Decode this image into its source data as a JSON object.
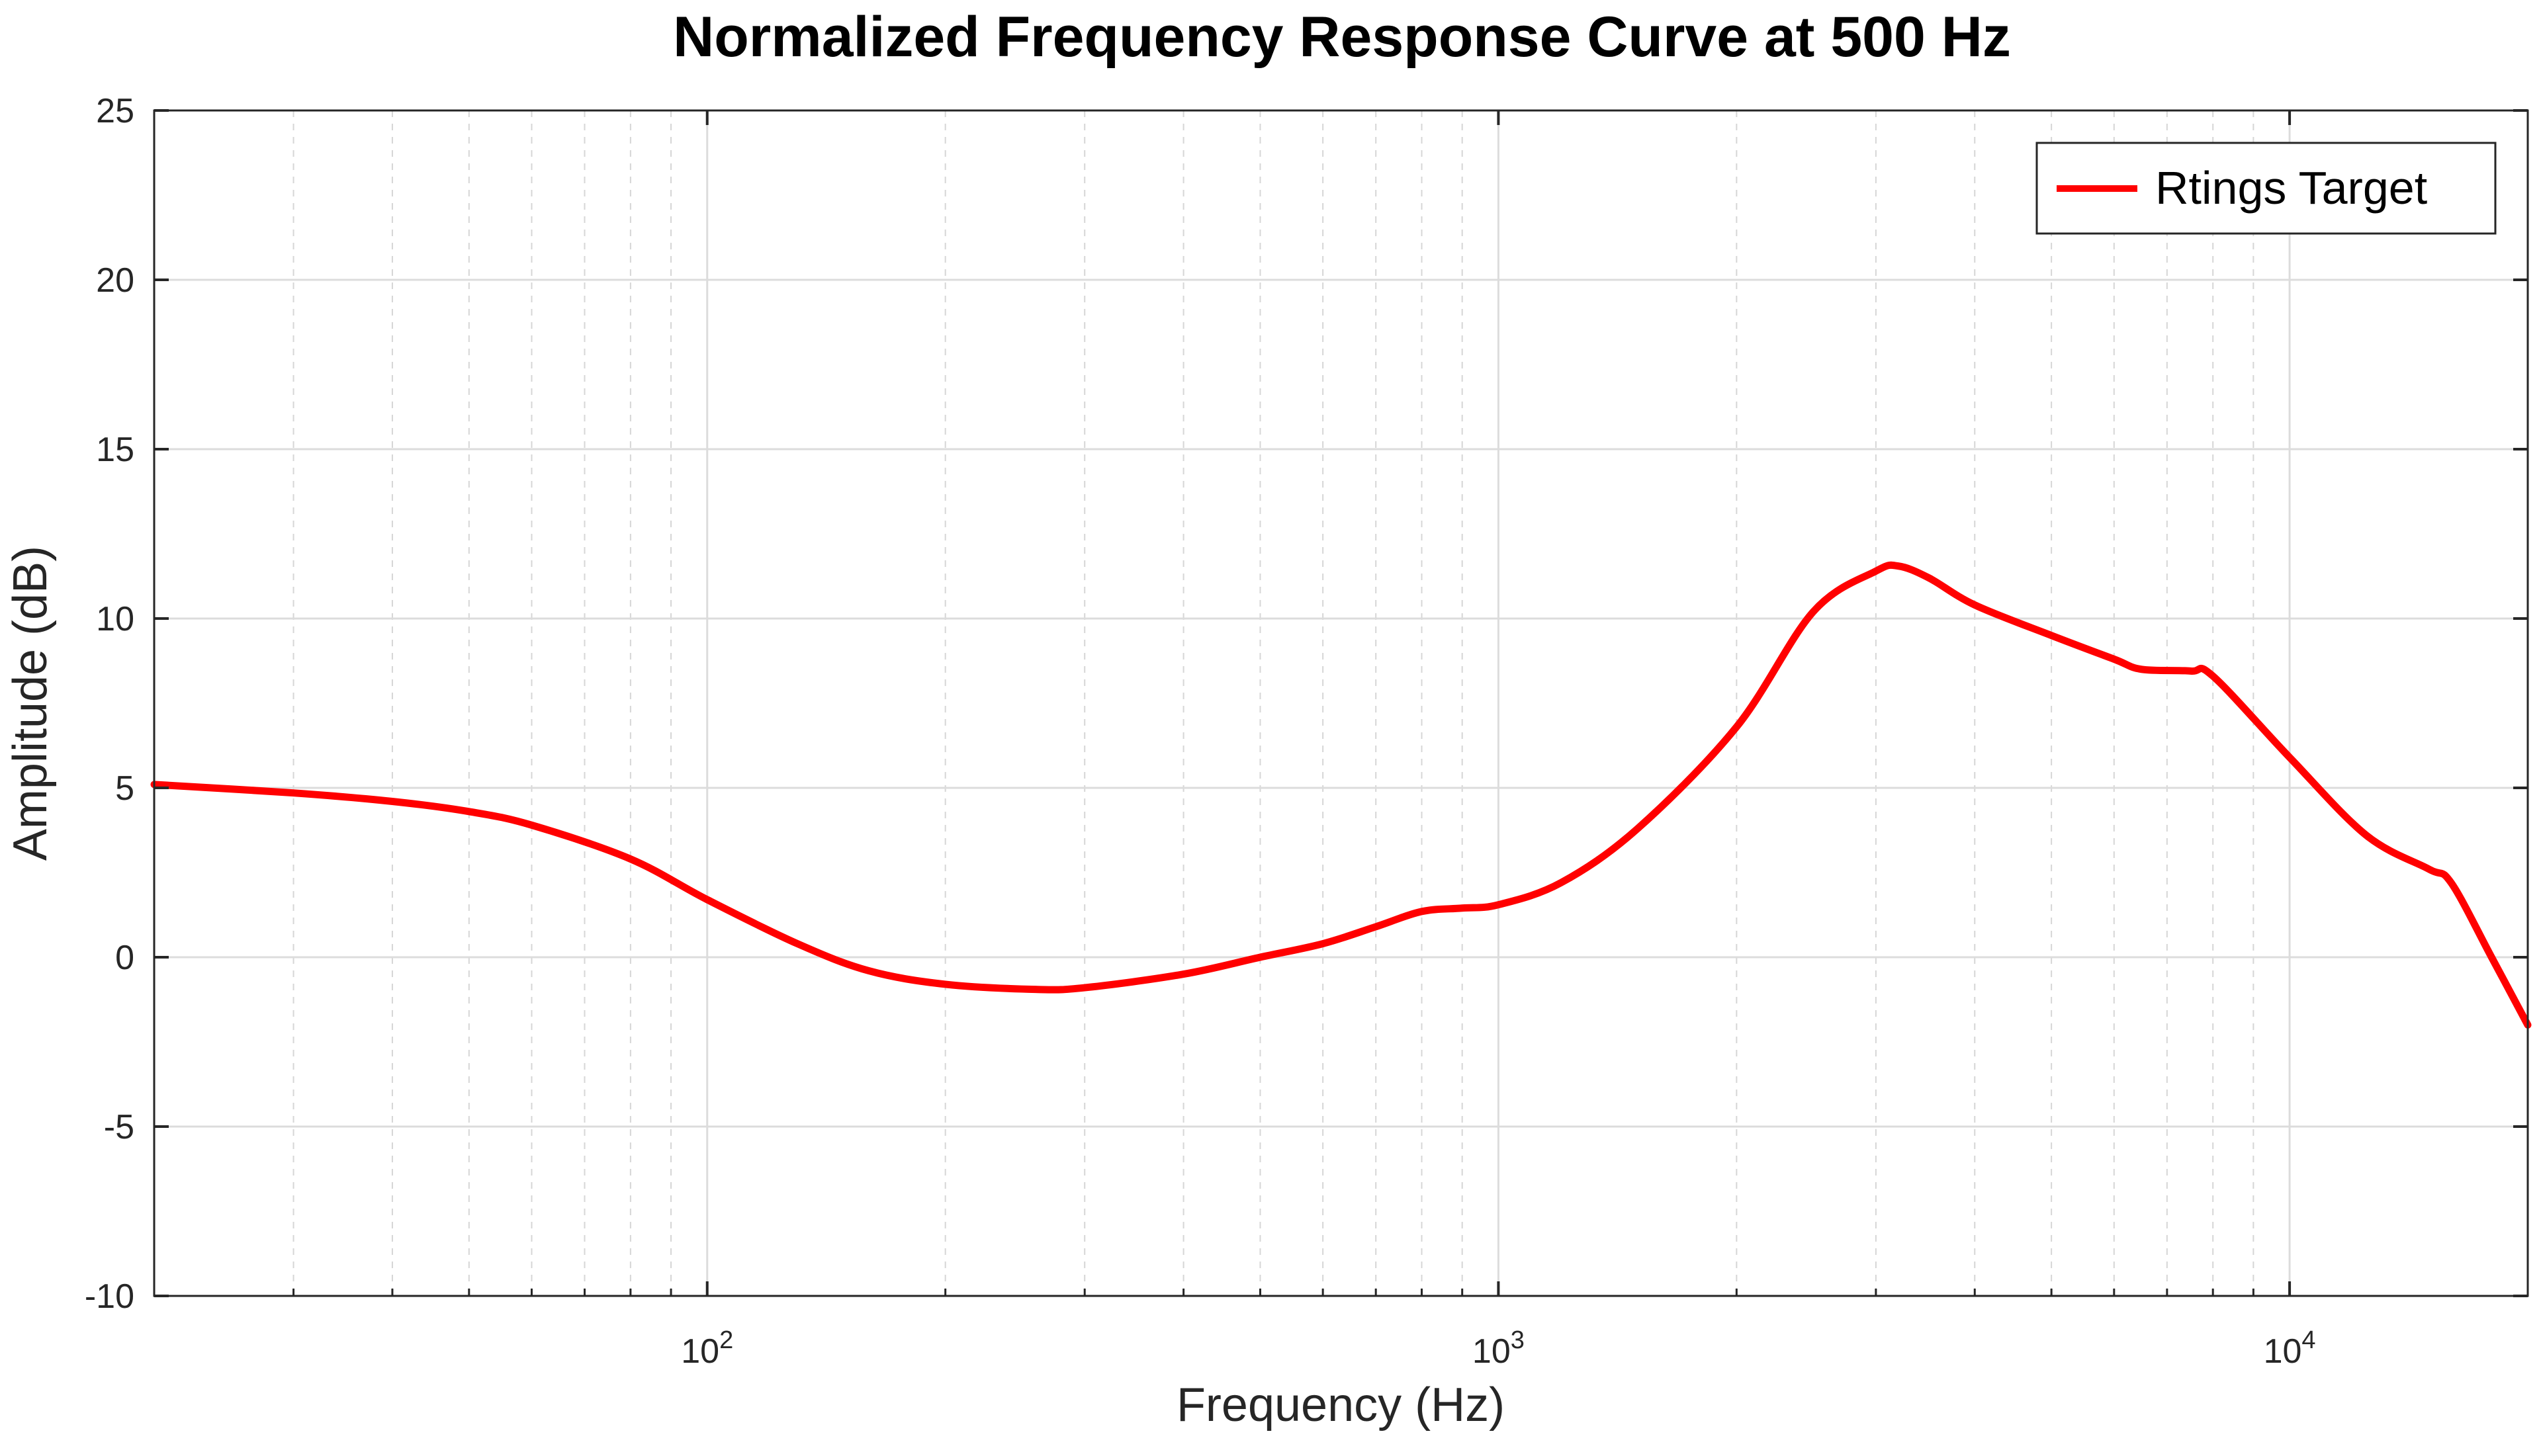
{
  "chart_data": {
    "type": "line",
    "title": "Normalized Frequency Response Curve at 500 Hz",
    "xlabel": "Frequency (Hz)",
    "ylabel": "Amplitude (dB)",
    "xscale": "log",
    "xlim": [
      20,
      20000
    ],
    "ylim": [
      -10,
      25
    ],
    "yticks": [
      -10,
      -5,
      0,
      5,
      10,
      15,
      20,
      25
    ],
    "xticks": [
      {
        "base": "10",
        "exp": "2"
      },
      {
        "base": "10",
        "exp": "3"
      },
      {
        "base": "10",
        "exp": "4"
      }
    ],
    "grid": true,
    "legend_position": "top-right",
    "series": [
      {
        "name": "Rtings Target",
        "color": "#ff0000",
        "x": [
          20,
          30,
          40,
          50,
          60,
          80,
          100,
          130,
          160,
          200,
          260,
          300,
          400,
          500,
          600,
          700,
          800,
          900,
          1000,
          1200,
          1500,
          2000,
          2500,
          3000,
          3200,
          3500,
          4000,
          5000,
          6000,
          6500,
          7500,
          8000,
          10000,
          12500,
          15000,
          16000,
          18000,
          20000
        ],
        "y": [
          5.1,
          4.85,
          4.6,
          4.3,
          3.9,
          2.9,
          1.7,
          0.4,
          -0.4,
          -0.8,
          -0.95,
          -0.9,
          -0.5,
          0.0,
          0.4,
          0.9,
          1.35,
          1.45,
          1.55,
          2.2,
          3.8,
          6.8,
          10.2,
          11.4,
          11.55,
          11.2,
          10.4,
          9.5,
          8.8,
          8.5,
          8.45,
          8.3,
          5.9,
          3.6,
          2.6,
          2.2,
          0.0,
          -2.0
        ]
      }
    ]
  }
}
